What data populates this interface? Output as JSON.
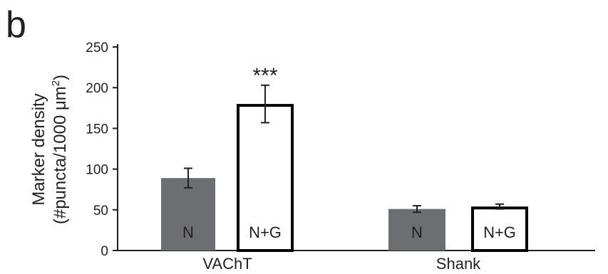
{
  "panel_label": "b",
  "chart_data": {
    "type": "bar",
    "categories": [
      "VAChT",
      "Shank"
    ],
    "series": [
      {
        "name": "N",
        "values": [
          89,
          51
        ],
        "errors": [
          12,
          4
        ],
        "color": "#6d6e71"
      },
      {
        "name": "N+G",
        "values": [
          180,
          54
        ],
        "errors": [
          23,
          3
        ],
        "color": "#ffffff"
      }
    ],
    "bar_labels": [
      "N",
      "N+G",
      "N",
      "N+G"
    ],
    "annotations": [
      {
        "text": "***",
        "category": "VAChT",
        "series": "N+G"
      }
    ],
    "ylabel_line1": "Marker density",
    "ylabel_line2_prefix": "(#puncta/1000 μm",
    "ylabel_sup": "2",
    "ylabel_line2_suffix": ")",
    "ylim": [
      0,
      250
    ],
    "yticks": [
      0,
      50,
      100,
      150,
      200,
      250
    ],
    "grid": false,
    "legend": "none"
  }
}
